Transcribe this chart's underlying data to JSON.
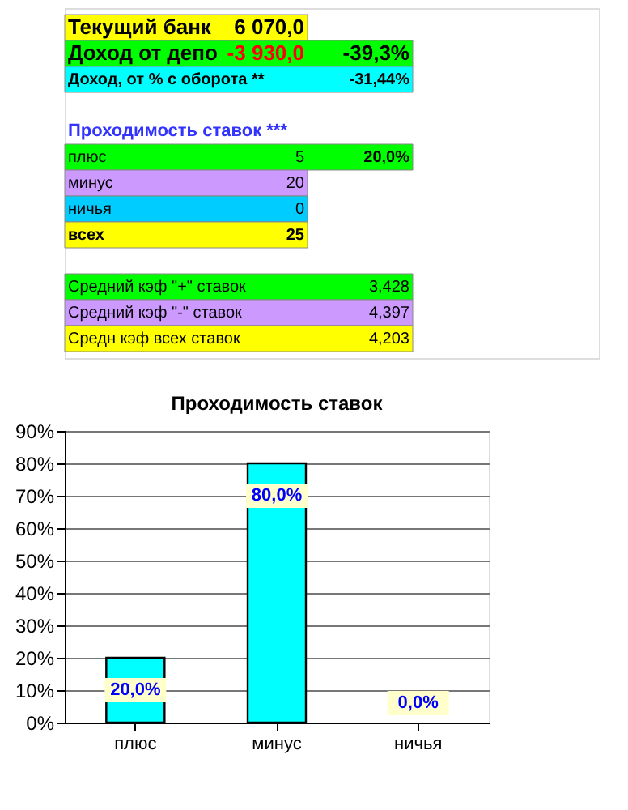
{
  "chart_data": {
    "type": "bar",
    "title": "Проходимость ставок",
    "categories": [
      "плюс",
      "минус",
      "ничья"
    ],
    "values": [
      20,
      80,
      0
    ],
    "color": "#00ffff",
    "value_labels": [
      "20,0%",
      "80,0%",
      "0,0%"
    ],
    "ylim": [
      0,
      90
    ],
    "yticks": [
      {
        "value": 0,
        "label": "0%"
      },
      {
        "value": 10,
        "label": "10%"
      },
      {
        "value": 20,
        "label": "20%"
      },
      {
        "value": 30,
        "label": "30%"
      },
      {
        "value": 40,
        "label": "40%"
      },
      {
        "value": 50,
        "label": "50%"
      },
      {
        "value": 60,
        "label": "60%"
      },
      {
        "value": 70,
        "label": "70%"
      },
      {
        "value": 80,
        "label": "80%"
      },
      {
        "value": 90,
        "label": "90%"
      }
    ],
    "grid": "y",
    "annotations": [
      "Текущий банк",
      "6 070,0",
      "Доход от депо",
      "-3 930,0",
      "-39,3%",
      "Доход, от % с оборота **",
      "-31,44%",
      "Проходимость ставок ***",
      "плюс",
      "5",
      "20,0%",
      "минус",
      "20",
      "ничья",
      "0",
      "всех",
      "25",
      "Средний кэф \"+\" ставок",
      "3,428",
      "Средний кэф \"-\" ставок",
      "4,397",
      "Средн кэф всех ставок",
      "4,203"
    ]
  }
}
